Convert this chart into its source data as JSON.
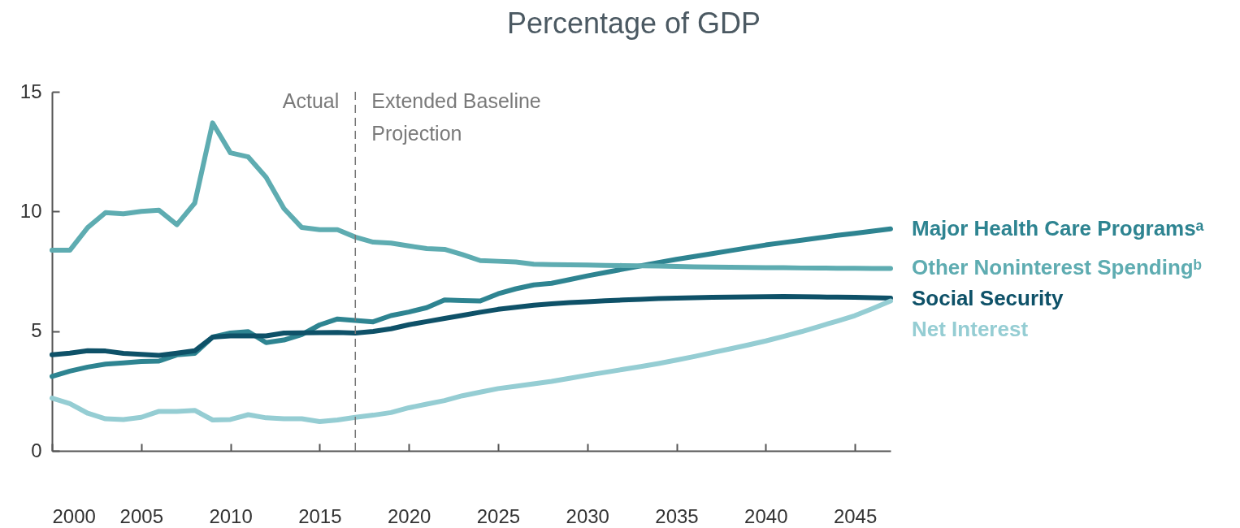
{
  "chart_data": {
    "type": "line",
    "title": "Percentage of GDP",
    "x": [
      2000,
      2001,
      2002,
      2003,
      2004,
      2005,
      2006,
      2007,
      2008,
      2009,
      2010,
      2011,
      2012,
      2013,
      2014,
      2015,
      2016,
      2017,
      2018,
      2019,
      2020,
      2021,
      2022,
      2023,
      2024,
      2025,
      2026,
      2027,
      2028,
      2029,
      2030,
      2031,
      2032,
      2033,
      2034,
      2035,
      2036,
      2037,
      2038,
      2039,
      2040,
      2041,
      2042,
      2043,
      2044,
      2045,
      2046,
      2047
    ],
    "series": [
      {
        "name": "Major Health Care Programsᵃ",
        "color": "#2e8491",
        "values": [
          3.11,
          3.33,
          3.5,
          3.62,
          3.67,
          3.73,
          3.75,
          4.01,
          4.07,
          4.75,
          4.92,
          4.98,
          4.52,
          4.63,
          4.86,
          5.26,
          5.51,
          5.45,
          5.39,
          5.65,
          5.8,
          5.98,
          6.3,
          6.28,
          6.26,
          6.56,
          6.77,
          6.93,
          7.0,
          7.15,
          7.31,
          7.45,
          7.59,
          7.73,
          7.87,
          8.0,
          8.12,
          8.24,
          8.36,
          8.48,
          8.6,
          8.7,
          8.8,
          8.9,
          9.0,
          9.09,
          9.18,
          9.27
        ]
      },
      {
        "name": "Other Noninterest Spendingᵇ",
        "color": "#5eacb1",
        "values": [
          8.38,
          8.38,
          9.33,
          9.95,
          9.9,
          10.0,
          10.05,
          9.45,
          10.35,
          13.7,
          12.45,
          12.28,
          11.43,
          10.12,
          9.33,
          9.24,
          9.24,
          8.93,
          8.72,
          8.68,
          8.56,
          8.45,
          8.42,
          8.2,
          7.95,
          7.92,
          7.89,
          7.8,
          7.78,
          7.77,
          7.76,
          7.75,
          7.74,
          7.73,
          7.72,
          7.7,
          7.69,
          7.68,
          7.67,
          7.66,
          7.65,
          7.65,
          7.64,
          7.64,
          7.63,
          7.63,
          7.62,
          7.62
        ]
      },
      {
        "name": "Social Security",
        "color": "#0e5168",
        "values": [
          4.01,
          4.08,
          4.18,
          4.17,
          4.07,
          4.03,
          3.99,
          4.08,
          4.18,
          4.75,
          4.8,
          4.8,
          4.8,
          4.92,
          4.93,
          4.94,
          4.95,
          4.92,
          4.99,
          5.1,
          5.27,
          5.4,
          5.53,
          5.66,
          5.79,
          5.91,
          6.0,
          6.08,
          6.14,
          6.19,
          6.23,
          6.27,
          6.3,
          6.33,
          6.36,
          6.38,
          6.4,
          6.41,
          6.42,
          6.43,
          6.44,
          6.45,
          6.44,
          6.43,
          6.42,
          6.41,
          6.4,
          6.38
        ]
      },
      {
        "name": "Net Interest",
        "color": "#95cdd3",
        "values": [
          2.2,
          1.97,
          1.57,
          1.34,
          1.31,
          1.4,
          1.65,
          1.65,
          1.69,
          1.29,
          1.31,
          1.51,
          1.38,
          1.34,
          1.34,
          1.22,
          1.29,
          1.4,
          1.49,
          1.6,
          1.8,
          1.95,
          2.1,
          2.3,
          2.45,
          2.6,
          2.7,
          2.8,
          2.9,
          3.03,
          3.16,
          3.28,
          3.4,
          3.52,
          3.65,
          3.79,
          3.94,
          4.1,
          4.26,
          4.42,
          4.59,
          4.78,
          4.98,
          5.2,
          5.42,
          5.65,
          5.95,
          6.26
        ]
      }
    ],
    "xlim": [
      2000,
      2047
    ],
    "xticks": [
      2000,
      2005,
      2010,
      2015,
      2020,
      2025,
      2030,
      2035,
      2040,
      2045
    ],
    "ylim": [
      0,
      15
    ],
    "yticks": [
      0,
      5,
      10,
      15
    ],
    "grid": false,
    "legend": false,
    "line_style": "solid",
    "ref_lines": [
      {
        "axis": "x",
        "value": 2017,
        "line_style": "dashed",
        "color": "#777777"
      }
    ],
    "annotations": [
      "Actual",
      "Extended Baseline Projection"
    ]
  }
}
